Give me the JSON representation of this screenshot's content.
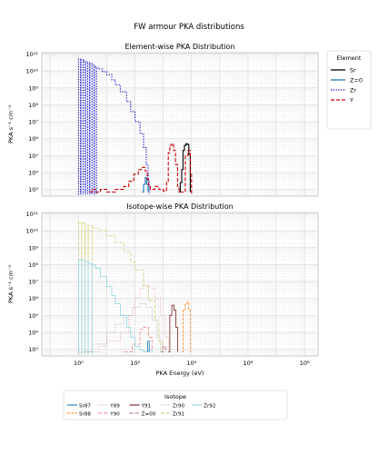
{
  "figure_title": "FW armour PKA distributions",
  "chart_data": [
    {
      "type": "line",
      "title": "Element-wise PKA Distribution",
      "xlabel": "",
      "ylabel": "PKA s⁻¹ cm⁻³",
      "xscale": "log",
      "yscale": "log",
      "xlim": [
        0.05,
        300000000.0
      ],
      "ylim": [
        400,
        120000000000.0
      ],
      "x_tick_labels": [
        "10⁰",
        "10²",
        "10⁴",
        "10⁶",
        "10⁸"
      ],
      "y_tick_labels": [
        "10³",
        "10⁴",
        "10⁵",
        "10⁶",
        "10⁷",
        "10⁸",
        "10⁹",
        "10¹⁰",
        "10¹¹"
      ],
      "grid": true,
      "legend": {
        "title": "Element",
        "placement": "right-outside-top"
      },
      "series": [
        {
          "name": "Sr",
          "color": "#000000",
          "dash": "",
          "points": [
            [
              3500,
              700
            ],
            [
              4000,
              2500.0
            ],
            [
              4500,
              15000.0
            ],
            [
              5000,
              200000.0
            ],
            [
              5600,
              400000.0
            ],
            [
              6300,
              500000.0
            ],
            [
              7000,
              450000.0
            ],
            [
              8000,
              120000.0
            ],
            [
              9000,
              700
            ]
          ]
        },
        {
          "name": "Z=0",
          "color": "#1f77b4",
          "dash": "",
          "points": [
            [
              180,
              700
            ],
            [
              200,
              2000
            ],
            [
              230,
              5000
            ],
            [
              260,
              2000
            ],
            [
              290,
              700
            ]
          ]
        },
        {
          "name": "Zr",
          "color": "#0000cc",
          "dash": "1.2,1.6",
          "points": [
            [
              1.0,
              500
            ],
            [
              1.0,
              50000000000.0
            ],
            [
              1.2,
              500
            ],
            [
              1.2,
              45000000000.0
            ],
            [
              1.45,
              500
            ],
            [
              1.45,
              40000000000.0
            ],
            [
              1.75,
              500
            ],
            [
              1.75,
              35000000000.0
            ],
            [
              2.1,
              500
            ],
            [
              2.1,
              30000000000.0
            ],
            [
              2.5,
              500
            ],
            [
              2.5,
              26000000000.0
            ],
            [
              3,
              500
            ],
            [
              3,
              22000000000.0
            ],
            [
              3.6,
              500
            ],
            [
              3.6,
              18000000000.0
            ],
            [
              4.3,
              500
            ],
            [
              4.3,
              15000000000.0
            ],
            [
              5,
              13000000000.0
            ],
            [
              7,
              9000000000.0
            ],
            [
              10,
              6000000000.0
            ],
            [
              15,
              3000000000.0
            ],
            [
              20,
              1500000000.0
            ],
            [
              30,
              600000000.0
            ],
            [
              50,
              150000000.0
            ],
            [
              70,
              40000000.0
            ],
            [
              100,
              10000000.0
            ],
            [
              150,
              2000000.0
            ],
            [
              200,
              300000.0
            ],
            [
              250,
              30000.0
            ],
            [
              290,
              3000.0
            ],
            [
              320,
              500
            ]
          ]
        },
        {
          "name": "Y",
          "color": "#cc0000",
          "dash": "4,2",
          "points": [
            [
              2.5,
              700
            ],
            [
              3,
              1000
            ],
            [
              4,
              700
            ],
            [
              6,
              1000
            ],
            [
              10,
              700
            ],
            [
              20,
              1000
            ],
            [
              40,
              1500
            ],
            [
              60,
              3000
            ],
            [
              90,
              8000
            ],
            [
              130,
              15000.0
            ],
            [
              180,
              20000.0
            ],
            [
              230,
              12000.0
            ],
            [
              270,
              4000
            ],
            [
              300,
              1500
            ],
            [
              350,
              1000
            ],
            [
              500,
              1500
            ],
            [
              700,
              1000
            ],
            [
              1000,
              800
            ],
            [
              1300,
              3000
            ],
            [
              1500,
              150000.0
            ],
            [
              1700,
              400000.0
            ],
            [
              2000,
              500000.0
            ],
            [
              2300,
              200000.0
            ],
            [
              2700,
              30000.0
            ],
            [
              3200,
              1500
            ],
            [
              3600,
              700
            ],
            [
              6000,
              100000.0
            ],
            [
              7500,
              200000.0
            ],
            [
              9000,
              8000
            ],
            [
              10000,
              500
            ]
          ]
        }
      ]
    },
    {
      "type": "line",
      "title": "Isotope-wise PKA Distribution",
      "xlabel": "PKA Energy (eV)",
      "ylabel": "PKA s⁻¹ cm⁻³",
      "xscale": "log",
      "yscale": "log",
      "xlim": [
        0.05,
        300000000.0
      ],
      "ylim": [
        400,
        120000000000.0
      ],
      "x_tick_labels": [
        "10⁰",
        "10²",
        "10⁴",
        "10⁶",
        "10⁸"
      ],
      "y_tick_labels": [
        "10³",
        "10⁴",
        "10⁵",
        "10⁶",
        "10⁷",
        "10⁸",
        "10⁹",
        "10¹⁰",
        "10¹¹"
      ],
      "grid": true,
      "legend": {
        "title": "Isotope",
        "placement": "bottom",
        "columns": 7
      },
      "series": [
        {
          "name": "Sr87",
          "color": "#1f77b4",
          "dash": "",
          "points": [
            [
              250,
              700
            ],
            [
              280,
              3000
            ],
            [
              320,
              700
            ]
          ]
        },
        {
          "name": "Sr88",
          "color": "#ff7f0e",
          "dash": "3,1.5",
          "points": [
            [
              4500,
              700
            ],
            [
              5000,
              200000.0
            ],
            [
              6000,
              500000.0
            ],
            [
              7000,
              600000.0
            ],
            [
              8000,
              200000.0
            ],
            [
              9000,
              700
            ]
          ]
        },
        {
          "name": "Y89",
          "color": "#e8a0a0",
          "dash": "1.2,1.6",
          "points": [
            [
              2,
              700
            ],
            [
              5,
              1500
            ],
            [
              10,
              3000
            ],
            [
              30,
              10000.0
            ],
            [
              60,
              100000.0
            ],
            [
              100,
              1000000.0
            ],
            [
              150,
              4000000.0
            ],
            [
              200,
              6000000.0
            ],
            [
              300,
              4000000.0
            ],
            [
              500,
              1000000.0
            ],
            [
              800,
              100000.0
            ],
            [
              1200,
              5000.0
            ],
            [
              1500,
              700
            ]
          ]
        },
        {
          "name": "Y90",
          "color": "#f08080",
          "dash": "4,2",
          "points": [
            [
              40,
              700
            ],
            [
              80,
              2000.0
            ],
            [
              150,
              15000.0
            ],
            [
              200,
              20000.0
            ],
            [
              300,
              5000.0
            ],
            [
              400,
              700
            ]
          ]
        },
        {
          "name": "Y91",
          "color": "#7b1f1f",
          "dash": "",
          "points": [
            [
              1500,
              700
            ],
            [
              1700,
              100000.0
            ],
            [
              2000,
              400000.0
            ],
            [
              2400,
              200000.0
            ],
            [
              2800,
              20000.0
            ],
            [
              3200,
              700
            ]
          ]
        },
        {
          "name": "Z=00",
          "color": "#b06070",
          "dash": "4,2",
          "points": [
            [
              800,
              700
            ],
            [
              1000,
              1500
            ],
            [
              1200,
              700
            ]
          ]
        },
        {
          "name": "Zr90",
          "color": "#aaaaaa",
          "dash": "1.2,1.6",
          "points": [
            [
              1,
              700
            ],
            [
              3,
              2000.0
            ],
            [
              10,
              10000.0
            ],
            [
              20,
              30000.0
            ],
            [
              40,
              100000.0
            ],
            [
              80,
              300000.0
            ],
            [
              150,
              500000.0
            ],
            [
              250,
              300000.0
            ],
            [
              400,
              50000.0
            ],
            [
              600,
              5000.0
            ],
            [
              800,
              700
            ]
          ]
        },
        {
          "name": "Zr91",
          "color": "#d4cc7a",
          "dash": "4,2",
          "points": [
            [
              1,
              500
            ],
            [
              1,
              30000000000.0
            ],
            [
              1.3,
              500
            ],
            [
              1.3,
              28000000000.0
            ],
            [
              1.7,
              500
            ],
            [
              1.7,
              24000000000.0
            ],
            [
              2.2,
              500
            ],
            [
              2.2,
              20000000000.0
            ],
            [
              3,
              500
            ],
            [
              3,
              16000000000.0
            ],
            [
              4,
              14000000000.0
            ],
            [
              6,
              10000000000.0
            ],
            [
              10,
              5000000000.0
            ],
            [
              20,
              2000000000.0
            ],
            [
              40,
              600000000.0
            ],
            [
              70,
              150000000.0
            ],
            [
              100,
              50000000.0
            ],
            [
              200,
              5000000.0
            ],
            [
              300,
              800000.0
            ],
            [
              500,
              50000.0
            ],
            [
              700,
              3000.0
            ],
            [
              900,
              700
            ]
          ]
        },
        {
          "name": "Zr92",
          "color": "#8fd3e0",
          "dash": "",
          "points": [
            [
              1,
              500
            ],
            [
              1,
              200000000.0
            ],
            [
              1.3,
              500
            ],
            [
              1.3,
              180000000.0
            ],
            [
              1.7,
              500
            ],
            [
              1.7,
              150000000.0
            ],
            [
              2.2,
              500
            ],
            [
              2.2,
              120000000.0
            ],
            [
              3,
              500
            ],
            [
              3,
              100000000.0
            ],
            [
              4,
              60000000.0
            ],
            [
              6,
              20000000.0
            ],
            [
              10,
              5000000.0
            ],
            [
              15,
              1500000.0
            ],
            [
              20,
              500000.0
            ],
            [
              30,
              100000.0
            ],
            [
              50,
              20000.0
            ],
            [
              70,
              5000.0
            ],
            [
              100,
              1500
            ],
            [
              150,
              900
            ],
            [
              200,
              700
            ],
            [
              300,
              900
            ],
            [
              400,
              700
            ]
          ]
        }
      ]
    }
  ]
}
